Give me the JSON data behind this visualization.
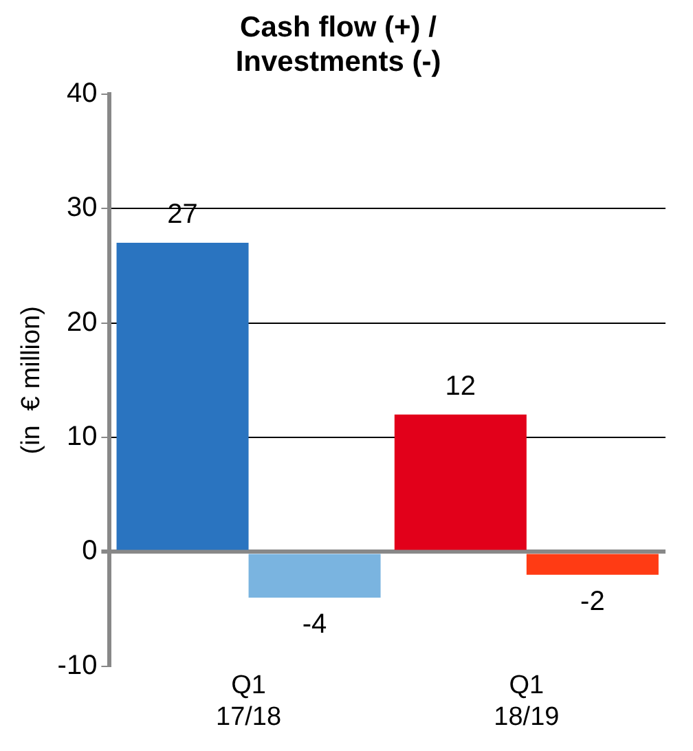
{
  "chart_data": {
    "type": "bar",
    "title": "Cash flow (+) /\nInvestments (-)",
    "ylabel": "(in  € million)",
    "categories": [
      "Q1\n17/18",
      "Q1\n18/19"
    ],
    "series": [
      {
        "colors": [
          "#2a74c0",
          "#e2001a"
        ],
        "values": [
          27,
          12
        ]
      },
      {
        "colors": [
          "#7ab4e0",
          "#ff3b14"
        ],
        "values": [
          -4,
          -2
        ]
      }
    ],
    "ylim": [
      -10,
      40
    ],
    "yticks": [
      -10,
      0,
      10,
      20,
      30,
      40
    ],
    "grid": "y",
    "data_labels": true,
    "legend": false
  }
}
